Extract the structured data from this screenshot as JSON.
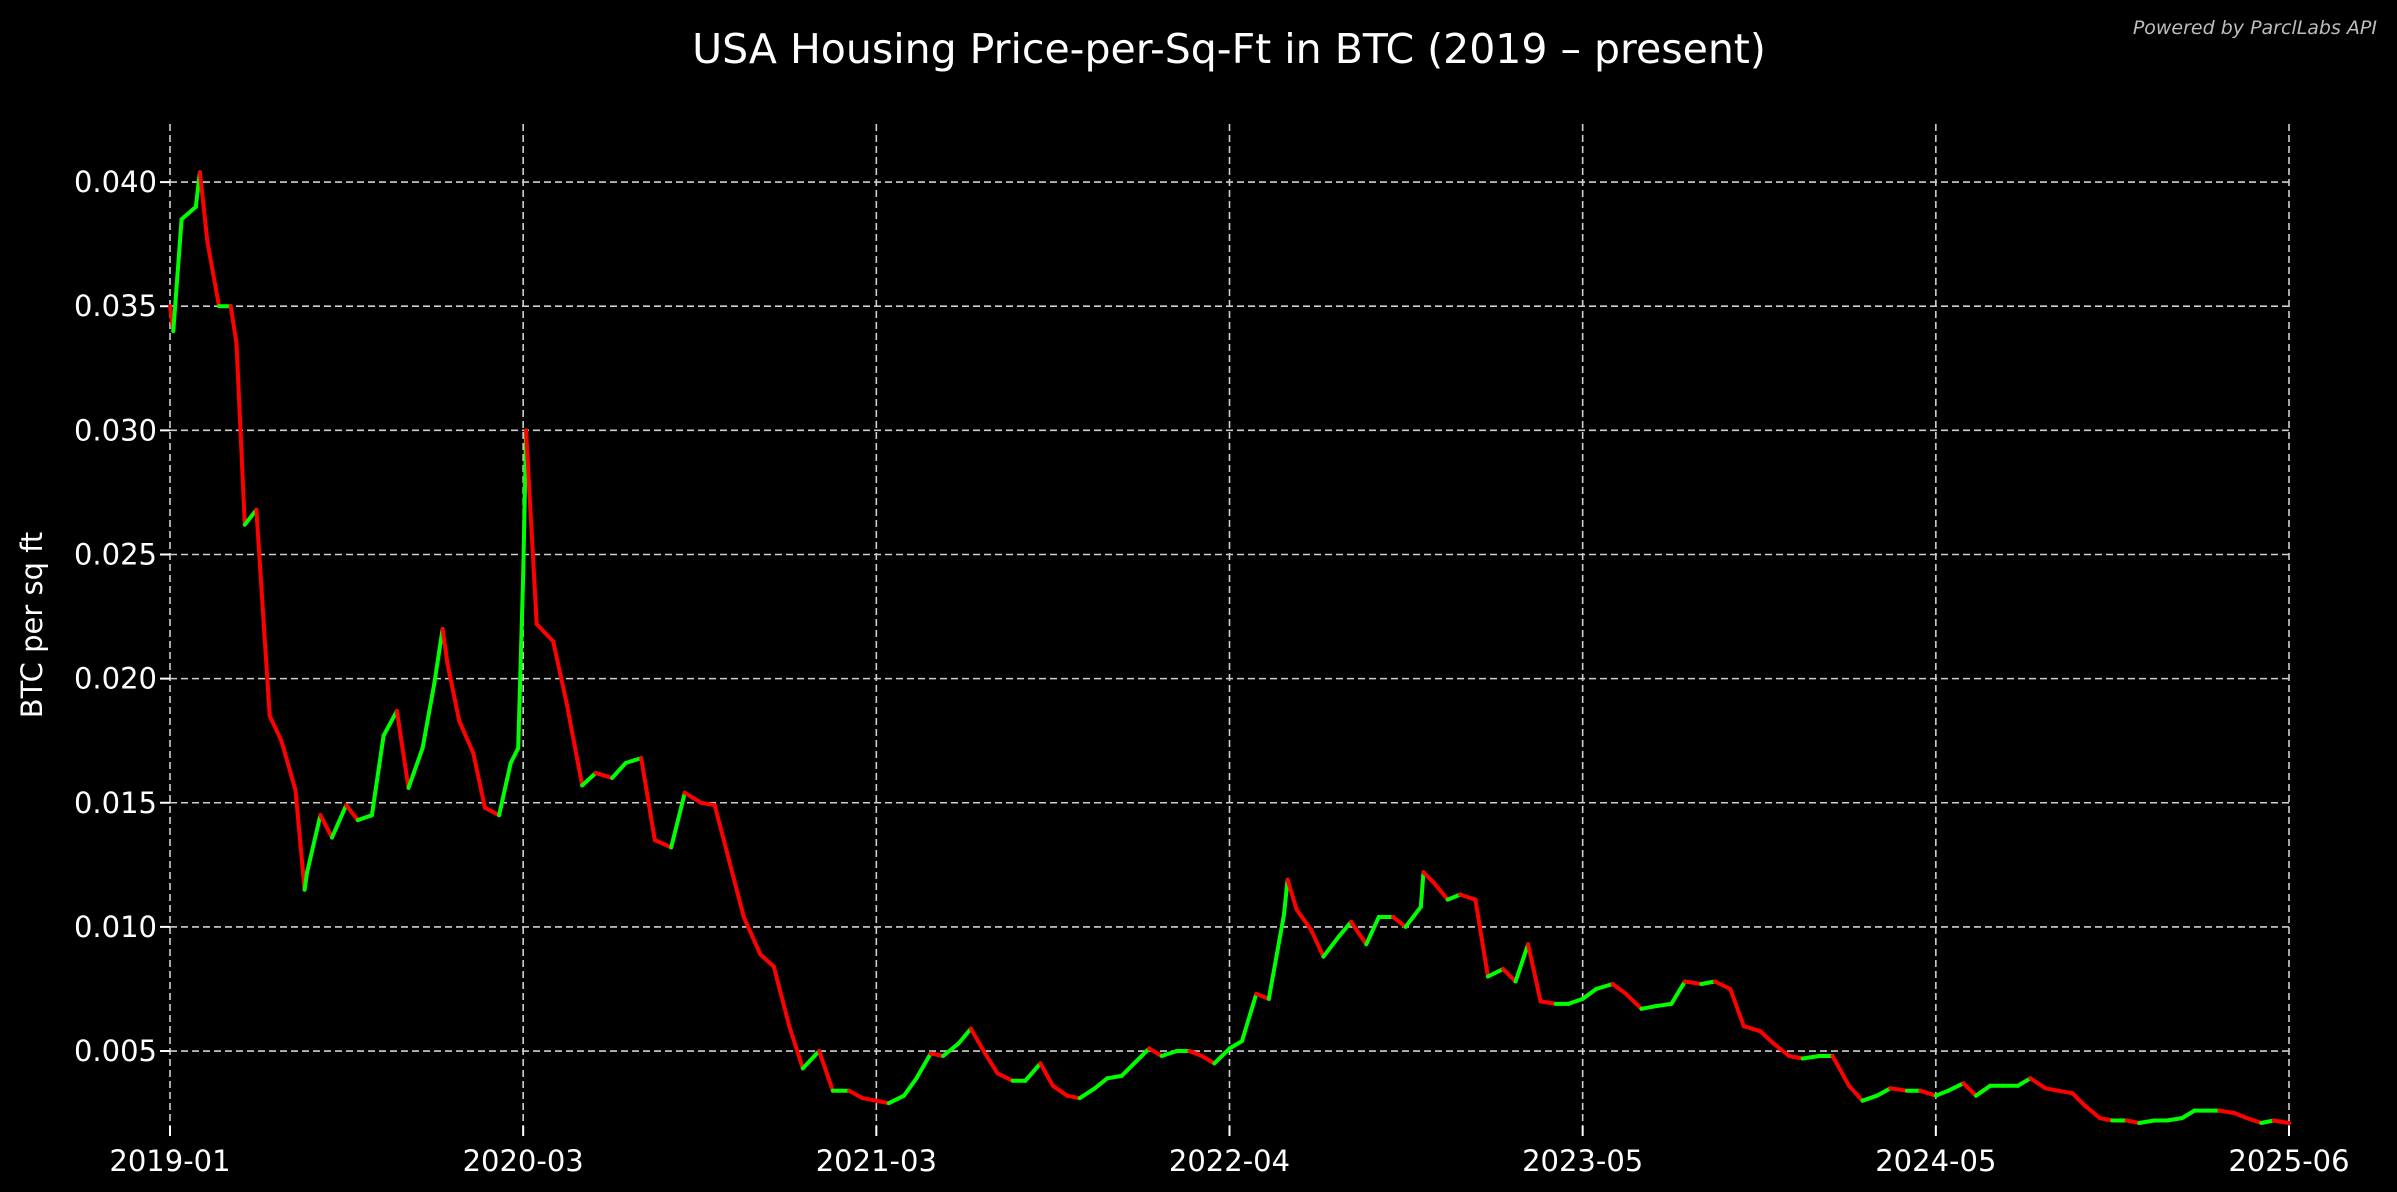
{
  "watermark": "Powered by ParclLabs API",
  "chart_data": {
    "type": "line",
    "title": "USA Housing Price-per-Sq-Ft in BTC (2019 – present)",
    "xlabel": "",
    "ylabel": "BTC per sq ft",
    "x_tick_labels": [
      "2019-01",
      "2020-03",
      "2021-03",
      "2022-04",
      "2023-05",
      "2024-05",
      "2025-06"
    ],
    "y_ticks": [
      0.005,
      0.01,
      0.015,
      0.02,
      0.025,
      0.03,
      0.035,
      0.04
    ],
    "y_tick_labels": [
      "0.005",
      "0.010",
      "0.015",
      "0.020",
      "0.025",
      "0.030",
      "0.035",
      "0.040"
    ],
    "ylim": [
      0.00198,
      0.04234
    ],
    "grid": true,
    "legend": "none",
    "background_color": "#000000",
    "up_color": "#00ff00",
    "down_color": "#ff0000",
    "points": [
      [
        "2019-01-01",
        0.035
      ],
      [
        "2019-01-05",
        0.034
      ],
      [
        "2019-01-15",
        0.0385
      ],
      [
        "2019-02-01",
        0.039
      ],
      [
        "2019-02-06",
        0.0404
      ],
      [
        "2019-02-15",
        0.0376
      ],
      [
        "2019-03-01",
        0.035
      ],
      [
        "2019-03-15",
        0.035
      ],
      [
        "2019-03-22",
        0.0335
      ],
      [
        "2019-04-01",
        0.0262
      ],
      [
        "2019-04-15",
        0.0268
      ],
      [
        "2019-05-01",
        0.0185
      ],
      [
        "2019-05-15",
        0.0175
      ],
      [
        "2019-06-01",
        0.0155
      ],
      [
        "2019-06-12",
        0.0115
      ],
      [
        "2019-06-15",
        0.0122
      ],
      [
        "2019-07-01",
        0.0145
      ],
      [
        "2019-07-15",
        0.0136
      ],
      [
        "2019-08-01",
        0.0149
      ],
      [
        "2019-08-15",
        0.0143
      ],
      [
        "2019-09-01",
        0.0145
      ],
      [
        "2019-09-15",
        0.0177
      ],
      [
        "2019-10-01",
        0.0187
      ],
      [
        "2019-10-15",
        0.0156
      ],
      [
        "2019-11-01",
        0.0172
      ],
      [
        "2019-11-15",
        0.0198
      ],
      [
        "2019-11-25",
        0.022
      ],
      [
        "2019-12-01",
        0.0206
      ],
      [
        "2019-12-15",
        0.0183
      ],
      [
        "2020-01-01",
        0.017
      ],
      [
        "2020-01-15",
        0.0148
      ],
      [
        "2020-02-01",
        0.0145
      ],
      [
        "2020-02-15",
        0.0166
      ],
      [
        "2020-02-24",
        0.0172
      ],
      [
        "2020-03-01",
        0.0242
      ],
      [
        "2020-03-04",
        0.03
      ],
      [
        "2020-03-15",
        0.0222
      ],
      [
        "2020-04-01",
        0.0215
      ],
      [
        "2020-04-15",
        0.019
      ],
      [
        "2020-05-01",
        0.0157
      ],
      [
        "2020-05-15",
        0.0162
      ],
      [
        "2020-06-01",
        0.016
      ],
      [
        "2020-06-15",
        0.0166
      ],
      [
        "2020-07-01",
        0.0168
      ],
      [
        "2020-07-15",
        0.0135
      ],
      [
        "2020-08-01",
        0.0132
      ],
      [
        "2020-08-15",
        0.0154
      ],
      [
        "2020-09-01",
        0.015
      ],
      [
        "2020-09-15",
        0.0149
      ],
      [
        "2020-10-01",
        0.0125
      ],
      [
        "2020-10-15",
        0.0104
      ],
      [
        "2020-11-01",
        0.0089
      ],
      [
        "2020-11-15",
        0.0084
      ],
      [
        "2020-12-01",
        0.006
      ],
      [
        "2020-12-15",
        0.0043
      ],
      [
        "2021-01-01",
        0.005
      ],
      [
        "2021-01-15",
        0.0034
      ],
      [
        "2021-02-01",
        0.0034
      ],
      [
        "2021-02-15",
        0.0031
      ],
      [
        "2021-03-01",
        0.003
      ],
      [
        "2021-03-15",
        0.0029
      ],
      [
        "2021-04-01",
        0.0032
      ],
      [
        "2021-04-15",
        0.0039
      ],
      [
        "2021-05-01",
        0.0049
      ],
      [
        "2021-05-15",
        0.0048
      ],
      [
        "2021-06-01",
        0.0053
      ],
      [
        "2021-06-15",
        0.0059
      ],
      [
        "2021-07-01",
        0.0049
      ],
      [
        "2021-07-15",
        0.0041
      ],
      [
        "2021-08-01",
        0.0038
      ],
      [
        "2021-08-15",
        0.0038
      ],
      [
        "2021-09-01",
        0.0045
      ],
      [
        "2021-09-15",
        0.0036
      ],
      [
        "2021-10-01",
        0.0032
      ],
      [
        "2021-10-15",
        0.0031
      ],
      [
        "2021-11-01",
        0.0035
      ],
      [
        "2021-11-15",
        0.0039
      ],
      [
        "2021-12-01",
        0.004
      ],
      [
        "2021-12-15",
        0.0045
      ],
      [
        "2022-01-01",
        0.0051
      ],
      [
        "2022-01-15",
        0.0048
      ],
      [
        "2022-02-01",
        0.005
      ],
      [
        "2022-02-15",
        0.005
      ],
      [
        "2022-03-01",
        0.0048
      ],
      [
        "2022-03-15",
        0.0045
      ],
      [
        "2022-04-01",
        0.0051
      ],
      [
        "2022-04-15",
        0.0054
      ],
      [
        "2022-05-01",
        0.0073
      ],
      [
        "2022-05-15",
        0.0071
      ],
      [
        "2022-06-01",
        0.0105
      ],
      [
        "2022-06-05",
        0.0119
      ],
      [
        "2022-06-15",
        0.0107
      ],
      [
        "2022-07-01",
        0.0099
      ],
      [
        "2022-07-15",
        0.0088
      ],
      [
        "2022-08-01",
        0.0096
      ],
      [
        "2022-08-15",
        0.0102
      ],
      [
        "2022-09-01",
        0.0093
      ],
      [
        "2022-09-15",
        0.0104
      ],
      [
        "2022-10-01",
        0.0104
      ],
      [
        "2022-10-15",
        0.01
      ],
      [
        "2022-11-01",
        0.0108
      ],
      [
        "2022-11-04",
        0.0122
      ],
      [
        "2022-11-15",
        0.0118
      ],
      [
        "2022-12-01",
        0.0111
      ],
      [
        "2022-12-15",
        0.0113
      ],
      [
        "2023-01-01",
        0.0111
      ],
      [
        "2023-01-15",
        0.008
      ],
      [
        "2023-02-01",
        0.0083
      ],
      [
        "2023-02-15",
        0.0078
      ],
      [
        "2023-03-01",
        0.0093
      ],
      [
        "2023-03-15",
        0.007
      ],
      [
        "2023-04-01",
        0.0069
      ],
      [
        "2023-04-15",
        0.0069
      ],
      [
        "2023-05-01",
        0.0071
      ],
      [
        "2023-05-15",
        0.0075
      ],
      [
        "2023-06-01",
        0.0077
      ],
      [
        "2023-06-15",
        0.0073
      ],
      [
        "2023-07-01",
        0.0067
      ],
      [
        "2023-07-15",
        0.0068
      ],
      [
        "2023-08-01",
        0.0069
      ],
      [
        "2023-08-15",
        0.0078
      ],
      [
        "2023-09-01",
        0.0077
      ],
      [
        "2023-09-15",
        0.0078
      ],
      [
        "2023-10-01",
        0.0075
      ],
      [
        "2023-10-15",
        0.006
      ],
      [
        "2023-11-01",
        0.0058
      ],
      [
        "2023-11-15",
        0.0053
      ],
      [
        "2023-12-01",
        0.0048
      ],
      [
        "2023-12-15",
        0.0047
      ],
      [
        "2024-01-01",
        0.0048
      ],
      [
        "2024-01-15",
        0.0048
      ],
      [
        "2024-02-01",
        0.0036
      ],
      [
        "2024-02-15",
        0.003
      ],
      [
        "2024-03-01",
        0.0032
      ],
      [
        "2024-03-15",
        0.0035
      ],
      [
        "2024-04-01",
        0.0034
      ],
      [
        "2024-04-15",
        0.0034
      ],
      [
        "2024-05-01",
        0.0032
      ],
      [
        "2024-05-15",
        0.0034
      ],
      [
        "2024-06-01",
        0.0037
      ],
      [
        "2024-06-15",
        0.0032
      ],
      [
        "2024-07-01",
        0.0036
      ],
      [
        "2024-07-15",
        0.0036
      ],
      [
        "2024-08-01",
        0.0036
      ],
      [
        "2024-08-15",
        0.0039
      ],
      [
        "2024-09-01",
        0.0035
      ],
      [
        "2024-09-15",
        0.0034
      ],
      [
        "2024-10-01",
        0.0033
      ],
      [
        "2024-10-15",
        0.0028
      ],
      [
        "2024-11-01",
        0.0023
      ],
      [
        "2024-11-15",
        0.0022
      ],
      [
        "2024-12-01",
        0.0022
      ],
      [
        "2024-12-15",
        0.0021
      ],
      [
        "2025-01-01",
        0.0022
      ],
      [
        "2025-01-15",
        0.0022
      ],
      [
        "2025-02-01",
        0.0023
      ],
      [
        "2025-02-15",
        0.0026
      ],
      [
        "2025-03-01",
        0.0026
      ],
      [
        "2025-03-15",
        0.0026
      ],
      [
        "2025-04-01",
        0.0025
      ],
      [
        "2025-04-15",
        0.0023
      ],
      [
        "2025-05-01",
        0.0021
      ],
      [
        "2025-05-15",
        0.0022
      ],
      [
        "2025-06-01",
        0.0021
      ]
    ]
  }
}
